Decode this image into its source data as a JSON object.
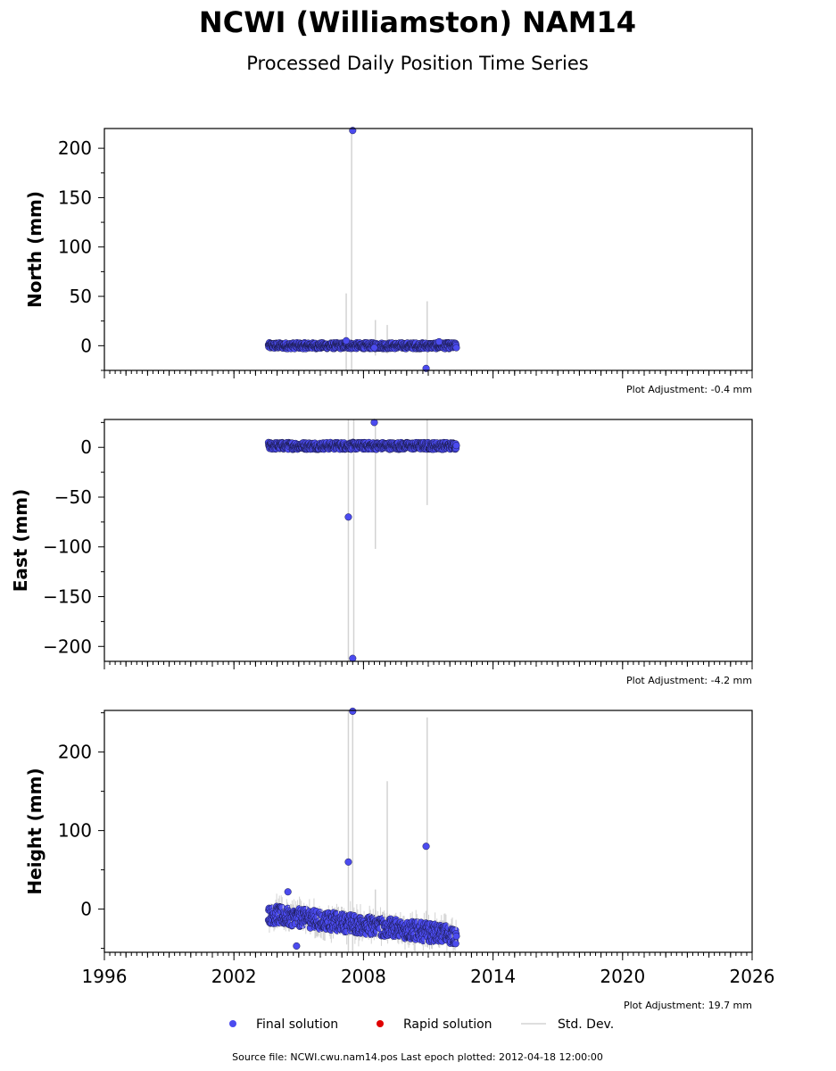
{
  "title": "NCWI (Williamston) NAM14",
  "subtitle": "Processed Daily Position Time Series",
  "legend": {
    "final": "Final solution",
    "rapid": "Rapid solution",
    "std": "Std. Dev."
  },
  "footer": "Source file: NCWI.cwu.nam14.pos  Last epoch plotted: 2012-04-18 12:00:00",
  "colors": {
    "final": "#4b4bef",
    "rapid": "#e00000",
    "std": "#d3d3d3",
    "marker_edge": "#1a1a4a"
  },
  "chart_data": [
    {
      "type": "scatter",
      "ylabel": "North (mm)",
      "adjustment": "Plot Adjustment: -0.4 mm",
      "xlim": [
        1996,
        2026
      ],
      "ylim": [
        -25,
        220
      ],
      "yticks": [
        0,
        50,
        100,
        150,
        200
      ],
      "ytick_labels": [
        "0",
        "50",
        "100",
        "150",
        "200"
      ],
      "xticks": [
        1996,
        2002,
        2008,
        2014,
        2020,
        2026
      ],
      "xtick_labels": [],
      "series_span": [
        2003.6,
        2012.3
      ],
      "band": [
        -3,
        3
      ],
      "points": [
        [
          2007.5,
          218
        ],
        [
          2010.9,
          -23
        ],
        [
          2007.2,
          5
        ],
        [
          2008.5,
          -2
        ],
        [
          2011.5,
          4
        ]
      ],
      "errorbars": [
        [
          2007.2,
          -25,
          53
        ],
        [
          2007.45,
          -25,
          219
        ],
        [
          2008.55,
          -10,
          26
        ],
        [
          2009.1,
          -8,
          21
        ],
        [
          2010.95,
          -20,
          45
        ]
      ]
    },
    {
      "type": "scatter",
      "ylabel": "East (mm)",
      "adjustment": "Plot Adjustment: -4.2 mm",
      "xlim": [
        1996,
        2026
      ],
      "ylim": [
        -215,
        28
      ],
      "yticks": [
        0,
        -50,
        -100,
        -150,
        -200
      ],
      "ytick_labels": [
        "0",
        "−50",
        "−100",
        "−150",
        "−200"
      ],
      "xticks": [
        1996,
        2002,
        2008,
        2014,
        2020,
        2026
      ],
      "xtick_labels": [],
      "series_span": [
        2003.6,
        2012.3
      ],
      "band": [
        -2,
        5
      ],
      "points": [
        [
          2007.3,
          -70
        ],
        [
          2007.5,
          -212
        ],
        [
          2008.5,
          25
        ]
      ],
      "errorbars": [
        [
          2007.3,
          -215,
          28
        ],
        [
          2007.55,
          -215,
          28
        ],
        [
          2008.55,
          -102,
          28
        ],
        [
          2010.95,
          -58,
          28
        ]
      ]
    },
    {
      "type": "scatter",
      "ylabel": "Height (mm)",
      "adjustment": "Plot Adjustment: 19.7 mm",
      "xlim": [
        1996,
        2026
      ],
      "ylim": [
        -55,
        253
      ],
      "yticks": [
        0,
        100,
        200
      ],
      "ytick_labels": [
        "0",
        "100",
        "200"
      ],
      "xticks": [
        1996,
        2002,
        2008,
        2014,
        2020,
        2026
      ],
      "xtick_labels": [
        "1996",
        "2002",
        "2008",
        "2014",
        "2020",
        "2026"
      ],
      "series_span": [
        2003.6,
        2012.3
      ],
      "band_start": [
        -18,
        5
      ],
      "band_end": [
        -45,
        -22
      ],
      "points": [
        [
          2007.5,
          252
        ],
        [
          2007.3,
          60
        ],
        [
          2010.9,
          80
        ],
        [
          2004.5,
          22
        ],
        [
          2004.9,
          -47
        ]
      ],
      "errorbars": [
        [
          2007.3,
          -55,
          253
        ],
        [
          2007.5,
          -55,
          253
        ],
        [
          2008.55,
          -20,
          25
        ],
        [
          2009.1,
          -40,
          163
        ],
        [
          2010.95,
          -20,
          244
        ]
      ]
    }
  ]
}
